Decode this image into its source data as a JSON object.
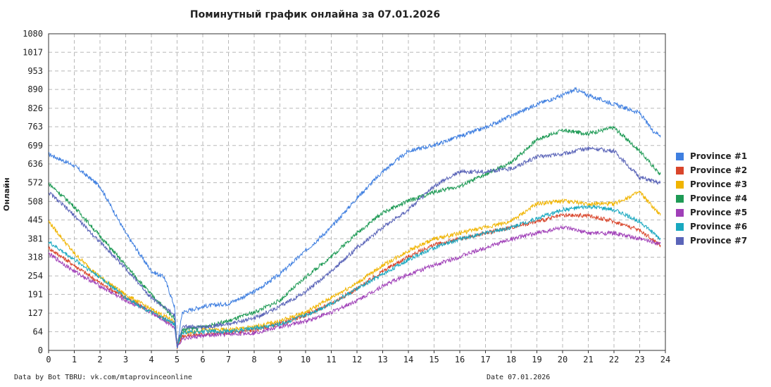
{
  "chart_data": {
    "type": "line",
    "title": "Поминутный график онлайна за 07.01.2026",
    "xlabel": "",
    "ylabel": "Онлайн",
    "x_ticks": [
      0,
      1,
      2,
      3,
      4,
      5,
      6,
      7,
      8,
      9,
      10,
      11,
      12,
      13,
      14,
      15,
      16,
      17,
      18,
      19,
      20,
      21,
      22,
      23,
      24
    ],
    "y_ticks": [
      0,
      64,
      127,
      191,
      254,
      318,
      381,
      445,
      508,
      572,
      636,
      699,
      763,
      826,
      890,
      953,
      1017,
      1080
    ],
    "xlim": [
      0,
      24
    ],
    "ylim": [
      0,
      1080
    ],
    "grid": true,
    "legend_position": "right",
    "series": [
      {
        "name": "Province #1",
        "color": "#3f7fe0",
        "x": [
          0,
          1,
          2,
          3,
          4,
          4.5,
          4.9,
          5,
          5.2,
          6,
          7,
          8,
          9,
          10,
          11,
          12,
          13,
          14,
          15,
          16,
          17,
          18,
          19,
          20,
          20.5,
          21,
          22,
          23,
          23.5,
          23.8
        ],
        "values": [
          670,
          630,
          560,
          400,
          270,
          250,
          150,
          10,
          130,
          150,
          160,
          200,
          260,
          340,
          420,
          520,
          610,
          680,
          700,
          730,
          760,
          800,
          840,
          870,
          890,
          870,
          840,
          810,
          750,
          735
        ]
      },
      {
        "name": "Province #2",
        "color": "#d9452b",
        "x": [
          0,
          1,
          2,
          3,
          4,
          4.9,
          5,
          5.2,
          6,
          7,
          8,
          9,
          10,
          11,
          12,
          13,
          14,
          15,
          16,
          17,
          18,
          19,
          20,
          21,
          22,
          23,
          23.8
        ],
        "values": [
          350,
          290,
          230,
          180,
          130,
          90,
          10,
          50,
          55,
          60,
          70,
          90,
          120,
          160,
          210,
          270,
          320,
          360,
          380,
          400,
          420,
          440,
          460,
          460,
          440,
          410,
          360
        ]
      },
      {
        "name": "Province #3",
        "color": "#f0b400",
        "x": [
          0,
          1,
          2,
          3,
          4,
          4.9,
          5,
          5.2,
          6,
          7,
          8,
          9,
          10,
          11,
          12,
          13,
          14,
          15,
          16,
          17,
          18,
          19,
          20,
          21,
          22,
          23,
          23.8
        ],
        "values": [
          440,
          330,
          250,
          190,
          140,
          100,
          20,
          60,
          70,
          70,
          80,
          100,
          130,
          180,
          230,
          290,
          340,
          380,
          400,
          420,
          440,
          500,
          510,
          500,
          500,
          540,
          460
        ]
      },
      {
        "name": "Province #4",
        "color": "#1e9a55",
        "x": [
          0,
          1,
          2,
          3,
          4,
          4.9,
          5,
          5.2,
          6,
          7,
          8,
          9,
          10,
          11,
          12,
          13,
          14,
          15,
          16,
          17,
          18,
          19,
          20,
          21,
          22,
          23,
          23.8
        ],
        "values": [
          570,
          490,
          390,
          290,
          190,
          110,
          15,
          70,
          80,
          100,
          130,
          170,
          250,
          320,
          400,
          470,
          510,
          540,
          560,
          600,
          640,
          720,
          750,
          740,
          760,
          680,
          600
        ]
      },
      {
        "name": "Province #5",
        "color": "#a040b8",
        "x": [
          0,
          1,
          2,
          3,
          4,
          4.9,
          5,
          5.2,
          6,
          7,
          8,
          9,
          10,
          11,
          12,
          13,
          14,
          15,
          16,
          17,
          18,
          19,
          20,
          21,
          22,
          23,
          23.8
        ],
        "values": [
          330,
          270,
          220,
          170,
          130,
          80,
          10,
          40,
          50,
          55,
          60,
          80,
          100,
          130,
          170,
          220,
          260,
          290,
          320,
          350,
          380,
          400,
          420,
          400,
          400,
          380,
          365
        ]
      },
      {
        "name": "Province #6",
        "color": "#19a8c0",
        "x": [
          0,
          1,
          2,
          3,
          4,
          4.9,
          5,
          5.2,
          6,
          7,
          8,
          9,
          10,
          11,
          12,
          13,
          14,
          15,
          16,
          17,
          18,
          19,
          20,
          21,
          22,
          23,
          23.8
        ],
        "values": [
          370,
          310,
          250,
          180,
          130,
          90,
          15,
          60,
          65,
          65,
          75,
          90,
          120,
          160,
          210,
          260,
          310,
          350,
          380,
          400,
          420,
          450,
          480,
          490,
          480,
          440,
          380
        ]
      },
      {
        "name": "Province #7",
        "color": "#5a64b8",
        "x": [
          0,
          1,
          2,
          3,
          4,
          4.9,
          5,
          5.2,
          6,
          7,
          8,
          9,
          10,
          11,
          12,
          13,
          14,
          15,
          16,
          17,
          18,
          19,
          20,
          21,
          22,
          23,
          23.8
        ],
        "values": [
          540,
          460,
          370,
          280,
          180,
          120,
          15,
          80,
          80,
          90,
          110,
          150,
          200,
          270,
          350,
          420,
          480,
          560,
          610,
          610,
          620,
          660,
          670,
          690,
          680,
          590,
          570
        ]
      }
    ]
  },
  "footer": {
    "left": "Data by Bot TBRU: vk.com/mtaprovinceonline",
    "right": "Date 07.01.2026"
  }
}
